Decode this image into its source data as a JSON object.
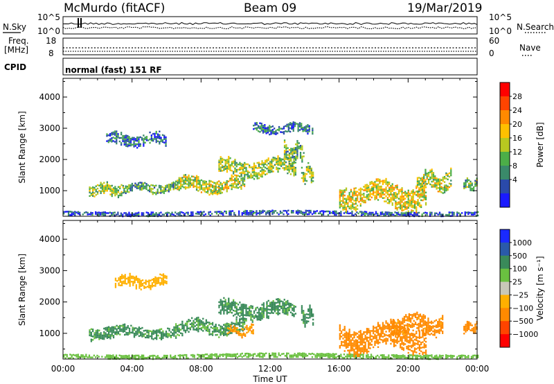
{
  "header": {
    "station": "McMurdo (fitACF)",
    "beam": "Beam 09",
    "date": "19/Mar/2019"
  },
  "strips": {
    "nsky_label": "N.Sky",
    "nsky_ticks": [
      "10^5",
      "10^0"
    ],
    "nsearch_label": "N.Search",
    "nsearch_ticks": [
      "10^5",
      "10^0"
    ],
    "freq_label_1": "Freq.",
    "freq_label_2": "[MHz]",
    "freq_ticks": [
      "18",
      "8"
    ],
    "nave_label": "Nave",
    "nave_ticks": [
      "60",
      "0"
    ],
    "cpid_label": "CPID",
    "cpid_text": "normal (fast) 151 RF"
  },
  "chart_data": [
    {
      "type": "heatmap",
      "panel": "power",
      "ylabel": "Slant Range [km]",
      "yticks": [
        1000,
        2000,
        3000,
        4000
      ],
      "ylim": [
        180,
        4600
      ],
      "xlim_hours": [
        0,
        24
      ],
      "colorbar": {
        "label": "Power [dB]",
        "ticks": [
          "28",
          "24",
          "20",
          "16",
          "12",
          "8",
          "4"
        ],
        "colors": [
          "#ff0000",
          "#ff4400",
          "#ff8a00",
          "#ffc000",
          "#b8c820",
          "#4cae48",
          "#3a8a6a",
          "#2a4aaa",
          "#1a1aff"
        ]
      },
      "echo_regions": [
        {
          "t_start": 0.0,
          "t_end": 24.0,
          "range_km": [
            200,
            380
          ],
          "power_db": 6
        },
        {
          "t_start": 1.5,
          "t_end": 3.5,
          "range_km": [
            800,
            1300
          ],
          "power_db": 16
        },
        {
          "t_start": 3.5,
          "t_end": 6.5,
          "range_km": [
            900,
            1300
          ],
          "power_db": 13
        },
        {
          "t_start": 6.5,
          "t_end": 10.5,
          "range_km": [
            900,
            1500
          ],
          "power_db": 18
        },
        {
          "t_start": 9.0,
          "t_end": 13.5,
          "range_km": [
            1400,
            2100
          ],
          "power_db": 17
        },
        {
          "t_start": 12.8,
          "t_end": 14.0,
          "range_km": [
            1800,
            2600
          ],
          "power_db": 14
        },
        {
          "t_start": 13.8,
          "t_end": 14.5,
          "range_km": [
            1200,
            1900
          ],
          "power_db": 16
        },
        {
          "t_start": 16.0,
          "t_end": 21.0,
          "range_km": [
            350,
            1400
          ],
          "power_db": 20
        },
        {
          "t_start": 20.5,
          "t_end": 22.5,
          "range_km": [
            900,
            1700
          ],
          "power_db": 18
        },
        {
          "t_start": 23.2,
          "t_end": 24.0,
          "range_km": [
            1000,
            1400
          ],
          "power_db": 14
        },
        {
          "t_start": 2.5,
          "t_end": 6.0,
          "range_km": [
            2400,
            2900
          ],
          "power_db": 8
        },
        {
          "t_start": 11.0,
          "t_end": 14.5,
          "range_km": [
            2800,
            3200
          ],
          "power_db": 8
        }
      ]
    },
    {
      "type": "heatmap",
      "panel": "velocity",
      "ylabel": "Slant Range [km]",
      "yticks": [
        1000,
        2000,
        3000,
        4000
      ],
      "ylim": [
        180,
        4600
      ],
      "xlim_hours": [
        0,
        24
      ],
      "xticks": [
        "00:00",
        "04:00",
        "08:00",
        "12:00",
        "16:00",
        "20:00",
        "00:00"
      ],
      "xlabel": "Time UT",
      "colorbar": {
        "label": "Velocity [m s⁻¹]",
        "ticks": [
          "1000",
          "500",
          "100",
          "25",
          "−25",
          "−100",
          "−500",
          "−1000"
        ],
        "colors": [
          "#1a2aff",
          "#2a5aaa",
          "#3a8a5a",
          "#6ac040",
          "#c8c8b8",
          "#ffb000",
          "#ff8a00",
          "#ff4400",
          "#ff0000"
        ]
      },
      "echo_regions": [
        {
          "t_start": 0.0,
          "t_end": 24.0,
          "range_km": [
            200,
            380
          ],
          "velocity": 60
        },
        {
          "t_start": 1.5,
          "t_end": 6.5,
          "range_km": [
            800,
            1300
          ],
          "velocity": 150
        },
        {
          "t_start": 6.5,
          "t_end": 10.5,
          "range_km": [
            900,
            1500
          ],
          "velocity": 120
        },
        {
          "t_start": 9.5,
          "t_end": 11.0,
          "range_km": [
            900,
            1300
          ],
          "velocity": -120
        },
        {
          "t_start": 9.0,
          "t_end": 13.5,
          "range_km": [
            1400,
            2100
          ],
          "velocity": 150
        },
        {
          "t_start": 13.8,
          "t_end": 14.5,
          "range_km": [
            1200,
            1900
          ],
          "velocity": 180
        },
        {
          "t_start": 16.0,
          "t_end": 21.0,
          "range_km": [
            350,
            1400
          ],
          "velocity": -200
        },
        {
          "t_start": 19.0,
          "t_end": 22.0,
          "range_km": [
            900,
            1700
          ],
          "velocity": -180
        },
        {
          "t_start": 23.2,
          "t_end": 24.0,
          "range_km": [
            1000,
            1400
          ],
          "velocity": -200
        },
        {
          "t_start": 3.0,
          "t_end": 6.0,
          "range_km": [
            2400,
            2900
          ],
          "velocity": -60
        }
      ]
    }
  ]
}
